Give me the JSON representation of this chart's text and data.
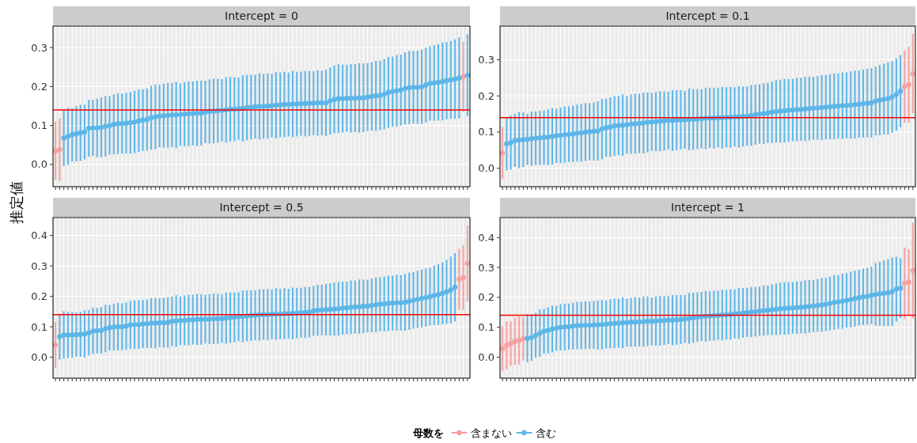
{
  "chart_data": [
    {
      "type": "scatter",
      "title": "Intercept = 0",
      "ylabel": "推定値",
      "legend": "bottom",
      "legend_title": "母数を",
      "grid": true,
      "marker": "circle",
      "tick_labels": "y",
      "categories": [
        null,
        null,
        null,
        null,
        null,
        null,
        null,
        null,
        null,
        null,
        null,
        null,
        null,
        null,
        null,
        null,
        null,
        null,
        null,
        null,
        null,
        null,
        null,
        null,
        null,
        null,
        null,
        null,
        null,
        null,
        null,
        null,
        null,
        null,
        null,
        null,
        null,
        null,
        null,
        null,
        null,
        null,
        null,
        null,
        null,
        null,
        null,
        null,
        null,
        null,
        null,
        null,
        null,
        null,
        null,
        null,
        null,
        null,
        null,
        null,
        null,
        null,
        null,
        null,
        null,
        null,
        null,
        null,
        null,
        null,
        null,
        null,
        null,
        null,
        null,
        null,
        null,
        null,
        null,
        null,
        null,
        null,
        null,
        null,
        null,
        null,
        null,
        null,
        null,
        null,
        null,
        null,
        null,
        null,
        null,
        null,
        null,
        null,
        null,
        null
      ],
      "ylim": [
        -0.057,
        0.355
      ],
      "yticks": [
        {
          "value": 0,
          "label": "0.0"
        },
        {
          "value": 0.1,
          "label": "0.1"
        },
        {
          "value": 0.2,
          "label": "0.2"
        },
        {
          "value": 0.3,
          "label": "0.3"
        }
      ],
      "ref_lines": [
        {
          "axis": "y",
          "value": 0.14,
          "color": "#ff0000"
        }
      ],
      "series": [
        {
          "name": "含まない",
          "color": "#f8a0a0",
          "values": [
            0.035,
            0.038,
            null,
            null,
            null,
            null,
            null,
            null,
            null,
            null,
            null,
            null,
            null,
            null,
            null,
            null,
            null,
            null,
            null,
            null,
            null,
            null,
            null,
            null,
            null,
            null,
            null,
            null,
            null,
            null,
            null,
            null,
            null,
            null,
            null,
            null,
            null,
            null,
            null,
            null,
            null,
            null,
            null,
            null,
            null,
            null,
            null,
            null,
            null,
            null,
            null,
            null,
            null,
            null,
            null,
            null,
            null,
            null,
            null,
            null,
            null,
            null,
            null,
            null,
            null,
            null,
            null,
            null,
            null,
            null,
            null,
            null,
            null,
            null,
            null,
            null,
            null,
            null,
            null,
            null,
            null,
            null,
            null,
            null,
            null,
            null,
            null,
            null,
            null,
            null,
            null,
            null,
            null,
            null,
            null,
            null,
            null,
            null,
            0.225,
            null
          ],
          "errors": [
            0.075,
            0.08,
            null,
            null,
            null,
            null,
            null,
            null,
            null,
            null,
            null,
            null,
            null,
            null,
            null,
            null,
            null,
            null,
            null,
            null,
            null,
            null,
            null,
            null,
            null,
            null,
            null,
            null,
            null,
            null,
            null,
            null,
            null,
            null,
            null,
            null,
            null,
            null,
            null,
            null,
            null,
            null,
            null,
            null,
            null,
            null,
            null,
            null,
            null,
            null,
            null,
            null,
            null,
            null,
            null,
            null,
            null,
            null,
            null,
            null,
            null,
            null,
            null,
            null,
            null,
            null,
            null,
            null,
            null,
            null,
            null,
            null,
            null,
            null,
            null,
            null,
            null,
            null,
            null,
            null,
            null,
            null,
            null,
            null,
            null,
            null,
            null,
            null,
            null,
            null,
            null,
            null,
            null,
            null,
            null,
            null,
            null,
            null,
            0.09,
            null
          ]
        },
        {
          "name": "含む",
          "color": "#5cb6e8",
          "values": [
            null,
            null,
            0.068,
            0.072,
            0.076,
            0.079,
            0.081,
            0.083,
            0.093,
            0.094,
            0.094,
            0.095,
            0.098,
            0.1,
            0.103,
            0.105,
            0.105,
            0.106,
            0.107,
            0.109,
            0.112,
            0.114,
            0.115,
            0.12,
            0.122,
            0.124,
            0.125,
            0.126,
            0.127,
            0.127,
            0.128,
            0.129,
            0.13,
            0.131,
            0.131,
            0.132,
            0.135,
            0.136,
            0.137,
            0.138,
            0.139,
            0.14,
            0.142,
            0.142,
            0.143,
            0.144,
            0.146,
            0.147,
            0.148,
            0.149,
            0.149,
            0.15,
            0.151,
            0.152,
            0.153,
            0.154,
            0.154,
            0.155,
            0.155,
            0.156,
            0.156,
            0.157,
            0.157,
            0.158,
            0.158,
            0.158,
            0.163,
            0.167,
            0.169,
            0.169,
            0.17,
            0.17,
            0.17,
            0.171,
            0.171,
            0.173,
            0.175,
            0.176,
            0.177,
            0.18,
            0.185,
            0.187,
            0.189,
            0.191,
            0.195,
            0.197,
            0.198,
            0.198,
            0.199,
            0.204,
            0.208,
            0.209,
            0.211,
            0.213,
            0.215,
            0.217,
            0.219,
            0.222,
            null,
            0.229
          ],
          "errors": [
            null,
            null,
            0.072,
            0.073,
            0.068,
            0.071,
            0.072,
            0.07,
            0.073,
            0.072,
            0.075,
            0.077,
            0.078,
            0.075,
            0.077,
            0.078,
            0.077,
            0.078,
            0.079,
            0.08,
            0.08,
            0.079,
            0.08,
            0.082,
            0.083,
            0.08,
            0.082,
            0.083,
            0.082,
            0.085,
            0.08,
            0.082,
            0.083,
            0.082,
            0.084,
            0.083,
            0.08,
            0.082,
            0.083,
            0.082,
            0.08,
            0.084,
            0.083,
            0.082,
            0.08,
            0.085,
            0.084,
            0.083,
            0.082,
            0.085,
            0.083,
            0.084,
            0.082,
            0.085,
            0.083,
            0.084,
            0.082,
            0.085,
            0.083,
            0.082,
            0.084,
            0.083,
            0.082,
            0.084,
            0.083,
            0.085,
            0.086,
            0.087,
            0.088,
            0.087,
            0.086,
            0.088,
            0.087,
            0.089,
            0.088,
            0.087,
            0.088,
            0.09,
            0.089,
            0.09,
            0.091,
            0.09,
            0.092,
            0.091,
            0.093,
            0.094,
            0.093,
            0.094,
            0.095,
            0.096,
            0.095,
            0.097,
            0.098,
            0.1,
            0.099,
            0.1,
            0.102,
            0.104,
            null,
            0.105
          ]
        }
      ]
    },
    {
      "type": "scatter",
      "title": "Intercept = 0.1",
      "grid": true,
      "marker": "circle",
      "tick_labels": "y",
      "categories": [
        null,
        null,
        null,
        null,
        null,
        null,
        null,
        null,
        null,
        null,
        null,
        null,
        null,
        null,
        null,
        null,
        null,
        null,
        null,
        null,
        null,
        null,
        null,
        null,
        null,
        null,
        null,
        null,
        null,
        null,
        null,
        null,
        null,
        null,
        null,
        null,
        null,
        null,
        null,
        null,
        null,
        null,
        null,
        null,
        null,
        null,
        null,
        null,
        null,
        null,
        null,
        null,
        null,
        null,
        null,
        null,
        null,
        null,
        null,
        null,
        null,
        null,
        null,
        null,
        null,
        null,
        null,
        null,
        null,
        null,
        null,
        null,
        null,
        null,
        null,
        null,
        null,
        null,
        null,
        null,
        null,
        null,
        null,
        null,
        null,
        null,
        null,
        null,
        null,
        null,
        null,
        null,
        null,
        null,
        null,
        null,
        null,
        null,
        null,
        null
      ],
      "ylim": [
        -0.051,
        0.393
      ],
      "yticks": [
        {
          "value": 0,
          "label": "0.0"
        },
        {
          "value": 0.1,
          "label": "0.1"
        },
        {
          "value": 0.2,
          "label": "0.2"
        },
        {
          "value": 0.3,
          "label": "0.3"
        }
      ],
      "ref_lines": [
        {
          "axis": "y",
          "value": 0.14,
          "color": "#ff0000"
        }
      ],
      "series": [
        {
          "color": "#f8a0a0",
          "values": [
            0.042,
            null,
            null,
            null,
            null,
            null,
            null,
            null,
            null,
            null,
            null,
            null,
            null,
            null,
            null,
            null,
            null,
            null,
            null,
            null,
            null,
            null,
            null,
            null,
            null,
            null,
            null,
            null,
            null,
            null,
            null,
            null,
            null,
            null,
            null,
            null,
            null,
            null,
            null,
            null,
            null,
            null,
            null,
            null,
            null,
            null,
            null,
            null,
            null,
            null,
            null,
            null,
            null,
            null,
            null,
            null,
            null,
            null,
            null,
            null,
            null,
            null,
            null,
            null,
            null,
            null,
            null,
            null,
            null,
            null,
            null,
            null,
            null,
            null,
            null,
            null,
            null,
            null,
            null,
            null,
            null,
            null,
            null,
            null,
            null,
            null,
            null,
            null,
            null,
            null,
            null,
            null,
            null,
            null,
            null,
            null,
            null,
            0.226,
            0.231,
            0.262
          ],
          "errors": [
            0.072,
            null,
            null,
            null,
            null,
            null,
            null,
            null,
            null,
            null,
            null,
            null,
            null,
            null,
            null,
            null,
            null,
            null,
            null,
            null,
            null,
            null,
            null,
            null,
            null,
            null,
            null,
            null,
            null,
            null,
            null,
            null,
            null,
            null,
            null,
            null,
            null,
            null,
            null,
            null,
            null,
            null,
            null,
            null,
            null,
            null,
            null,
            null,
            null,
            null,
            null,
            null,
            null,
            null,
            null,
            null,
            null,
            null,
            null,
            null,
            null,
            null,
            null,
            null,
            null,
            null,
            null,
            null,
            null,
            null,
            null,
            null,
            null,
            null,
            null,
            null,
            null,
            null,
            null,
            null,
            null,
            null,
            null,
            null,
            null,
            null,
            null,
            null,
            null,
            null,
            null,
            null,
            null,
            null,
            null,
            null,
            null,
            0.1,
            0.105,
            0.11
          ]
        },
        {
          "color": "#5cb6e8",
          "values": [
            null,
            0.067,
            0.071,
            0.077,
            0.078,
            0.079,
            0.08,
            0.082,
            0.083,
            0.084,
            0.085,
            0.086,
            0.088,
            0.09,
            0.091,
            0.093,
            0.094,
            0.095,
            0.097,
            0.098,
            0.1,
            0.101,
            0.102,
            0.103,
            0.108,
            0.112,
            0.114,
            0.117,
            0.118,
            0.119,
            0.12,
            0.122,
            0.123,
            0.124,
            0.125,
            0.127,
            0.128,
            0.129,
            0.13,
            0.131,
            0.132,
            0.132,
            0.133,
            0.134,
            0.134,
            0.135,
            0.135,
            0.136,
            0.137,
            0.138,
            0.139,
            0.139,
            0.14,
            0.14,
            0.141,
            0.141,
            0.142,
            0.142,
            0.143,
            0.144,
            0.146,
            0.148,
            0.15,
            0.151,
            0.153,
            0.155,
            0.157,
            0.158,
            0.159,
            0.16,
            0.161,
            0.162,
            0.163,
            0.164,
            0.165,
            0.166,
            0.167,
            0.168,
            0.169,
            0.17,
            0.171,
            0.172,
            0.173,
            0.174,
            0.175,
            0.176,
            0.177,
            0.179,
            0.18,
            0.181,
            0.186,
            0.188,
            0.191,
            0.193,
            0.197,
            0.204,
            0.213,
            null,
            null,
            null
          ],
          "errors": [
            null,
            0.073,
            0.075,
            0.073,
            0.078,
            0.076,
            0.07,
            0.075,
            0.074,
            0.075,
            0.075,
            0.077,
            0.078,
            0.075,
            0.077,
            0.078,
            0.077,
            0.078,
            0.079,
            0.08,
            0.08,
            0.079,
            0.08,
            0.082,
            0.083,
            0.08,
            0.082,
            0.083,
            0.082,
            0.085,
            0.08,
            0.082,
            0.083,
            0.082,
            0.084,
            0.083,
            0.08,
            0.082,
            0.083,
            0.082,
            0.08,
            0.084,
            0.083,
            0.082,
            0.08,
            0.085,
            0.084,
            0.083,
            0.082,
            0.085,
            0.083,
            0.084,
            0.082,
            0.085,
            0.083,
            0.084,
            0.082,
            0.085,
            0.083,
            0.082,
            0.084,
            0.083,
            0.082,
            0.084,
            0.083,
            0.085,
            0.086,
            0.087,
            0.088,
            0.087,
            0.086,
            0.088,
            0.087,
            0.089,
            0.088,
            0.087,
            0.088,
            0.09,
            0.089,
            0.09,
            0.091,
            0.09,
            0.092,
            0.091,
            0.093,
            0.094,
            0.093,
            0.094,
            0.095,
            0.096,
            0.095,
            0.097,
            0.098,
            0.1,
            0.099,
            0.1,
            0.1,
            null,
            null,
            null
          ]
        }
      ]
    },
    {
      "type": "scatter",
      "title": "Intercept = 0.5",
      "grid": true,
      "marker": "circle",
      "tick_labels": "y",
      "categories": [
        null,
        null,
        null,
        null,
        null,
        null,
        null,
        null,
        null,
        null,
        null,
        null,
        null,
        null,
        null,
        null,
        null,
        null,
        null,
        null,
        null,
        null,
        null,
        null,
        null,
        null,
        null,
        null,
        null,
        null,
        null,
        null,
        null,
        null,
        null,
        null,
        null,
        null,
        null,
        null,
        null,
        null,
        null,
        null,
        null,
        null,
        null,
        null,
        null,
        null,
        null,
        null,
        null,
        null,
        null,
        null,
        null,
        null,
        null,
        null,
        null,
        null,
        null,
        null,
        null,
        null,
        null,
        null,
        null,
        null,
        null,
        null,
        null,
        null,
        null,
        null,
        null,
        null,
        null,
        null,
        null,
        null,
        null,
        null,
        null,
        null,
        null,
        null,
        null,
        null,
        null,
        null,
        null,
        null,
        null,
        null,
        null,
        null,
        null,
        null
      ],
      "ylim": [
        -0.069,
        0.459
      ],
      "yticks": [
        {
          "value": 0,
          "label": "0.0"
        },
        {
          "value": 0.1,
          "label": "0.1"
        },
        {
          "value": 0.2,
          "label": "0.2"
        },
        {
          "value": 0.3,
          "label": "0.3"
        },
        {
          "value": 0.4,
          "label": "0.4"
        }
      ],
      "ref_lines": [
        {
          "axis": "y",
          "value": 0.14,
          "color": "#ff0000"
        }
      ],
      "series": [
        {
          "color": "#f8a0a0",
          "values": [
            0.04,
            null,
            null,
            null,
            null,
            null,
            null,
            null,
            null,
            null,
            null,
            null,
            null,
            null,
            null,
            null,
            null,
            null,
            null,
            null,
            null,
            null,
            null,
            null,
            null,
            null,
            null,
            null,
            null,
            null,
            null,
            null,
            null,
            null,
            null,
            null,
            null,
            null,
            null,
            null,
            null,
            null,
            null,
            null,
            null,
            null,
            null,
            null,
            null,
            null,
            null,
            null,
            null,
            null,
            null,
            null,
            null,
            null,
            null,
            null,
            null,
            null,
            null,
            null,
            null,
            null,
            null,
            null,
            null,
            null,
            null,
            null,
            null,
            null,
            null,
            null,
            null,
            null,
            null,
            null,
            null,
            null,
            null,
            null,
            null,
            null,
            null,
            null,
            null,
            null,
            null,
            null,
            null,
            null,
            null,
            null,
            null,
            0.256,
            0.262,
            0.308
          ],
          "errors": [
            0.077,
            null,
            null,
            null,
            null,
            null,
            null,
            null,
            null,
            null,
            null,
            null,
            null,
            null,
            null,
            null,
            null,
            null,
            null,
            null,
            null,
            null,
            null,
            null,
            null,
            null,
            null,
            null,
            null,
            null,
            null,
            null,
            null,
            null,
            null,
            null,
            null,
            null,
            null,
            null,
            null,
            null,
            null,
            null,
            null,
            null,
            null,
            null,
            null,
            null,
            null,
            null,
            null,
            null,
            null,
            null,
            null,
            null,
            null,
            null,
            null,
            null,
            null,
            null,
            null,
            null,
            null,
            null,
            null,
            null,
            null,
            null,
            null,
            null,
            null,
            null,
            null,
            null,
            null,
            null,
            null,
            null,
            null,
            null,
            null,
            null,
            null,
            null,
            null,
            null,
            null,
            null,
            null,
            null,
            null,
            null,
            null,
            0.1,
            0.107,
            0.125
          ]
        },
        {
          "color": "#5cb6e8",
          "values": [
            null,
            0.067,
            0.073,
            0.073,
            0.073,
            0.074,
            0.075,
            0.076,
            0.08,
            0.086,
            0.087,
            0.088,
            0.094,
            0.097,
            0.099,
            0.1,
            0.1,
            0.102,
            0.106,
            0.107,
            0.107,
            0.109,
            0.11,
            0.112,
            0.112,
            0.113,
            0.113,
            0.114,
            0.118,
            0.119,
            0.12,
            0.121,
            0.122,
            0.123,
            0.124,
            0.124,
            0.125,
            0.125,
            0.126,
            0.126,
            0.127,
            0.128,
            0.13,
            0.131,
            0.133,
            0.134,
            0.136,
            0.137,
            0.138,
            0.139,
            0.14,
            0.14,
            0.141,
            0.142,
            0.142,
            0.143,
            0.143,
            0.144,
            0.145,
            0.146,
            0.147,
            0.148,
            0.152,
            0.154,
            0.155,
            0.156,
            0.157,
            0.158,
            0.159,
            0.161,
            0.162,
            0.164,
            0.165,
            0.166,
            0.167,
            0.168,
            0.17,
            0.172,
            0.174,
            0.175,
            0.177,
            0.178,
            0.179,
            0.179,
            0.18,
            0.184,
            0.187,
            0.19,
            0.193,
            0.196,
            0.199,
            0.203,
            0.206,
            0.21,
            0.215,
            0.221,
            0.23,
            null,
            null,
            null
          ],
          "errors": [
            null,
            0.075,
            0.078,
            0.076,
            0.075,
            0.073,
            0.074,
            0.078,
            0.075,
            0.076,
            0.075,
            0.077,
            0.078,
            0.075,
            0.077,
            0.078,
            0.077,
            0.078,
            0.079,
            0.08,
            0.08,
            0.079,
            0.08,
            0.082,
            0.083,
            0.08,
            0.082,
            0.083,
            0.082,
            0.085,
            0.08,
            0.082,
            0.083,
            0.082,
            0.084,
            0.083,
            0.08,
            0.082,
            0.083,
            0.082,
            0.08,
            0.084,
            0.083,
            0.082,
            0.08,
            0.085,
            0.084,
            0.083,
            0.082,
            0.085,
            0.083,
            0.084,
            0.082,
            0.085,
            0.083,
            0.084,
            0.082,
            0.085,
            0.083,
            0.082,
            0.084,
            0.083,
            0.082,
            0.084,
            0.083,
            0.085,
            0.086,
            0.087,
            0.088,
            0.087,
            0.086,
            0.088,
            0.087,
            0.089,
            0.088,
            0.087,
            0.088,
            0.09,
            0.089,
            0.09,
            0.091,
            0.09,
            0.092,
            0.091,
            0.093,
            0.094,
            0.093,
            0.094,
            0.095,
            0.096,
            0.095,
            0.098,
            0.1,
            0.102,
            0.105,
            0.11,
            0.112,
            null,
            null,
            null
          ]
        }
      ]
    },
    {
      "type": "scatter",
      "title": "Intercept = 1",
      "grid": true,
      "marker": "circle",
      "tick_labels": "y",
      "categories": [
        null,
        null,
        null,
        null,
        null,
        null,
        null,
        null,
        null,
        null,
        null,
        null,
        null,
        null,
        null,
        null,
        null,
        null,
        null,
        null,
        null,
        null,
        null,
        null,
        null,
        null,
        null,
        null,
        null,
        null,
        null,
        null,
        null,
        null,
        null,
        null,
        null,
        null,
        null,
        null,
        null,
        null,
        null,
        null,
        null,
        null,
        null,
        null,
        null,
        null,
        null,
        null,
        null,
        null,
        null,
        null,
        null,
        null,
        null,
        null,
        null,
        null,
        null,
        null,
        null,
        null,
        null,
        null,
        null,
        null,
        null,
        null,
        null,
        null,
        null,
        null,
        null,
        null,
        null,
        null,
        null,
        null,
        null,
        null,
        null,
        null,
        null,
        null,
        null,
        null,
        null,
        null,
        null,
        null,
        null,
        null,
        null,
        null,
        null,
        null
      ],
      "ylim": [
        -0.07,
        0.467
      ],
      "yticks": [
        {
          "value": 0,
          "label": "0.0"
        },
        {
          "value": 0.1,
          "label": "0.1"
        },
        {
          "value": 0.2,
          "label": "0.2"
        },
        {
          "value": 0.3,
          "label": "0.3"
        },
        {
          "value": 0.4,
          "label": "0.4"
        }
      ],
      "ref_lines": [
        {
          "axis": "y",
          "value": 0.14,
          "color": "#ff0000"
        }
      ],
      "series": [
        {
          "color": "#f8a0a0",
          "values": [
            0.028,
            0.04,
            0.046,
            0.053,
            0.056,
            0.062,
            null,
            null,
            null,
            null,
            null,
            null,
            null,
            null,
            null,
            null,
            null,
            null,
            null,
            null,
            null,
            null,
            null,
            null,
            null,
            null,
            null,
            null,
            null,
            null,
            null,
            null,
            null,
            null,
            null,
            null,
            null,
            null,
            null,
            null,
            null,
            null,
            null,
            null,
            null,
            null,
            null,
            null,
            null,
            null,
            null,
            null,
            null,
            null,
            null,
            null,
            null,
            null,
            null,
            null,
            null,
            null,
            null,
            null,
            null,
            null,
            null,
            null,
            null,
            null,
            null,
            null,
            null,
            null,
            null,
            null,
            null,
            null,
            null,
            null,
            null,
            null,
            null,
            null,
            null,
            null,
            null,
            null,
            null,
            null,
            null,
            null,
            null,
            null,
            null,
            null,
            null,
            0.247,
            0.251,
            0.29
          ],
          "errors": [
            0.075,
            0.08,
            0.075,
            0.078,
            0.08,
            0.072,
            null,
            null,
            null,
            null,
            null,
            null,
            null,
            null,
            null,
            null,
            null,
            null,
            null,
            null,
            null,
            null,
            null,
            null,
            null,
            null,
            null,
            null,
            null,
            null,
            null,
            null,
            null,
            null,
            null,
            null,
            null,
            null,
            null,
            null,
            null,
            null,
            null,
            null,
            null,
            null,
            null,
            null,
            null,
            null,
            null,
            null,
            null,
            null,
            null,
            null,
            null,
            null,
            null,
            null,
            null,
            null,
            null,
            null,
            null,
            null,
            null,
            null,
            null,
            null,
            null,
            null,
            null,
            null,
            null,
            null,
            null,
            null,
            null,
            null,
            null,
            null,
            null,
            null,
            null,
            null,
            null,
            null,
            null,
            null,
            null,
            null,
            null,
            null,
            null,
            null,
            null,
            0.12,
            0.11,
            0.16
          ]
        },
        {
          "color": "#5cb6e8",
          "values": [
            null,
            null,
            null,
            null,
            null,
            null,
            0.063,
            0.066,
            0.073,
            0.08,
            0.087,
            0.09,
            0.094,
            0.097,
            0.1,
            0.101,
            0.102,
            0.104,
            0.106,
            0.106,
            0.107,
            0.107,
            0.108,
            0.108,
            0.109,
            0.11,
            0.112,
            0.113,
            0.114,
            0.115,
            0.116,
            0.117,
            0.118,
            0.118,
            0.119,
            0.12,
            0.12,
            0.121,
            0.122,
            0.123,
            0.124,
            0.124,
            0.125,
            0.126,
            0.128,
            0.13,
            0.132,
            0.134,
            0.136,
            0.137,
            0.138,
            0.139,
            0.14,
            0.141,
            0.142,
            0.143,
            0.145,
            0.146,
            0.148,
            0.15,
            0.151,
            0.152,
            0.154,
            0.156,
            0.157,
            0.159,
            0.16,
            0.162,
            0.163,
            0.164,
            0.165,
            0.166,
            0.167,
            0.168,
            0.17,
            0.171,
            0.173,
            0.175,
            0.177,
            0.18,
            0.183,
            0.185,
            0.187,
            0.19,
            0.193,
            0.196,
            0.199,
            0.202,
            0.204,
            0.207,
            0.21,
            0.212,
            0.214,
            0.216,
            0.219,
            0.228,
            0.231,
            null,
            null,
            null
          ],
          "errors": [
            null,
            null,
            null,
            null,
            null,
            null,
            0.08,
            0.078,
            0.075,
            0.08,
            0.075,
            0.077,
            0.078,
            0.075,
            0.077,
            0.078,
            0.077,
            0.078,
            0.079,
            0.08,
            0.08,
            0.079,
            0.08,
            0.082,
            0.083,
            0.08,
            0.082,
            0.083,
            0.082,
            0.085,
            0.08,
            0.082,
            0.083,
            0.082,
            0.084,
            0.083,
            0.08,
            0.082,
            0.083,
            0.082,
            0.08,
            0.084,
            0.083,
            0.082,
            0.08,
            0.085,
            0.084,
            0.083,
            0.082,
            0.085,
            0.083,
            0.084,
            0.082,
            0.085,
            0.083,
            0.084,
            0.082,
            0.085,
            0.083,
            0.082,
            0.084,
            0.083,
            0.082,
            0.084,
            0.083,
            0.085,
            0.086,
            0.087,
            0.088,
            0.087,
            0.086,
            0.088,
            0.087,
            0.089,
            0.088,
            0.087,
            0.088,
            0.09,
            0.089,
            0.09,
            0.091,
            0.09,
            0.092,
            0.091,
            0.093,
            0.094,
            0.093,
            0.094,
            0.095,
            0.096,
            0.105,
            0.107,
            0.11,
            0.112,
            0.115,
            0.108,
            0.1,
            null,
            null,
            null
          ]
        }
      ]
    }
  ]
}
